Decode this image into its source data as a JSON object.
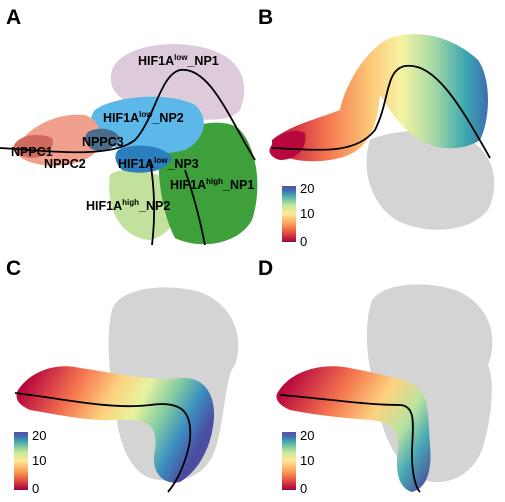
{
  "panels": [
    {
      "id": "A",
      "letter": "A"
    },
    {
      "id": "B",
      "letter": "B"
    },
    {
      "id": "C",
      "letter": "C"
    },
    {
      "id": "D",
      "letter": "D"
    }
  ],
  "clusters": {
    "hif1a_low_np1": {
      "base": "HIF1A",
      "sup": "low",
      "suffix": "_NP1",
      "color": "#ddcadb"
    },
    "hif1a_low_np2": {
      "base": "HIF1A",
      "sup": "low",
      "suffix": "_NP2",
      "color": "#5bb8e8"
    },
    "nppc3": {
      "text": "NPPC3",
      "color": "#4a6d8c"
    },
    "nppc1": {
      "text": "NPPC1",
      "color": "#f0a08c"
    },
    "nppc2": {
      "text": "NPPC2",
      "color": "#d06a5e"
    },
    "hif1a_low_np3": {
      "base": "HIF1A",
      "sup": "low",
      "suffix": "_NP3",
      "color": "#2c7fbf"
    },
    "hif1a_high_np1": {
      "base": "HIF1A",
      "sup": "high",
      "suffix": "_NP1",
      "color": "#3da03a"
    },
    "hif1a_high_np2": {
      "base": "HIF1A",
      "sup": "high",
      "suffix": "_NP2",
      "color": "#c2e19c"
    }
  },
  "colorbar": {
    "ticks": [
      "20",
      "10",
      "0"
    ],
    "range": [
      0,
      20
    ],
    "palette": "Spectral (reversed): red at 0, yellow at 10, purple at 20"
  },
  "colors": {
    "background_cells": "#d4d4d4",
    "trajectory": "#000000"
  }
}
